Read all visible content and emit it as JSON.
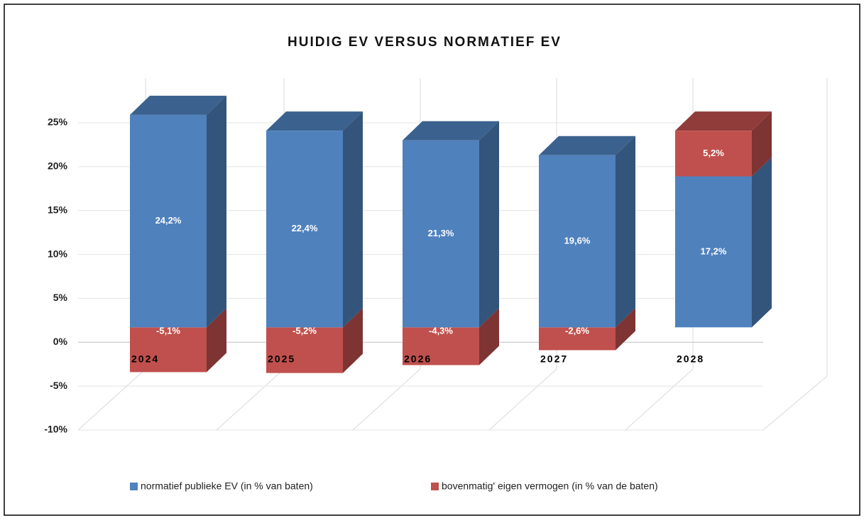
{
  "chart_data": {
    "type": "bar3d_stacked",
    "title": "HUIDIG EV VERSUS NORMATIEF EV",
    "categories": [
      "2024",
      "2025",
      "2026",
      "2027",
      "2028"
    ],
    "series": [
      {
        "name": "normatief publieke EV (in % van baten)",
        "color": "#4f81bd",
        "values": [
          24.2,
          22.4,
          21.3,
          19.6,
          17.2
        ],
        "value_labels": [
          "24,2%",
          "22,4%",
          "21,3%",
          "19,6%",
          "17,2%"
        ]
      },
      {
        "name": "bovenmatig' eigen vermogen (in % van de baten)",
        "color": "#c0504d",
        "values": [
          -5.1,
          -5.2,
          -4.3,
          -2.6,
          5.2
        ],
        "value_labels": [
          "-5,1%",
          "-5,2%",
          "-4,3%",
          "-2,6%",
          "5,2%"
        ]
      }
    ],
    "ylim": [
      -10,
      25
    ],
    "yticks": [
      {
        "value": -10,
        "label": "-10%"
      },
      {
        "value": -5,
        "label": "-5%"
      },
      {
        "value": 0,
        "label": "0%"
      },
      {
        "value": 5,
        "label": "5%"
      },
      {
        "value": 10,
        "label": "10%"
      },
      {
        "value": 15,
        "label": "15%"
      },
      {
        "value": 20,
        "label": "20%"
      },
      {
        "value": 25,
        "label": "25%"
      }
    ],
    "grid": true,
    "legend": "bottom"
  }
}
